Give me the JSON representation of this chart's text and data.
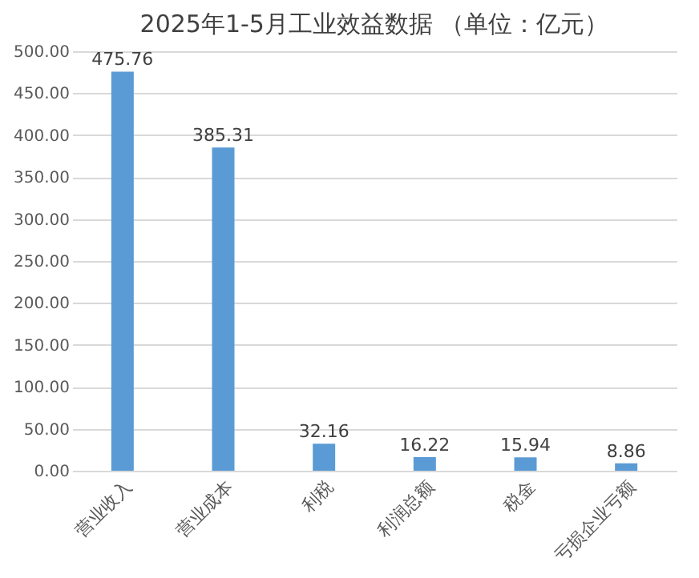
{
  "chart_data": {
    "type": "bar",
    "title": "2025年1-5月工业效益数据 （单位：亿元）",
    "categories": [
      "营业收入",
      "营业成本",
      "利税",
      "利润总额",
      "税金",
      "亏损企业亏额"
    ],
    "values": [
      475.76,
      385.31,
      32.16,
      16.22,
      15.94,
      8.86
    ],
    "color": "#5b9bd5",
    "ylim": [
      0,
      500
    ],
    "yticks": [
      {
        "value": 0,
        "label": "0.00"
      },
      {
        "value": 50,
        "label": "50.00"
      },
      {
        "value": 100,
        "label": "100.00"
      },
      {
        "value": 150,
        "label": "150.00"
      },
      {
        "value": 200,
        "label": "200.00"
      },
      {
        "value": 250,
        "label": "250.00"
      },
      {
        "value": 300,
        "label": "300.00"
      },
      {
        "value": 350,
        "label": "350.00"
      },
      {
        "value": 400,
        "label": "400.00"
      },
      {
        "value": 450,
        "label": "450.00"
      },
      {
        "value": 500,
        "label": "500.00"
      }
    ],
    "grid": "y",
    "data_labels": true
  }
}
